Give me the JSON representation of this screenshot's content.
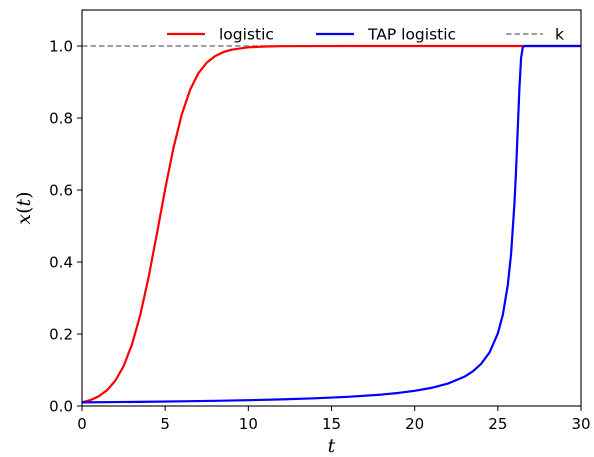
{
  "chart_data": {
    "type": "line",
    "title": "",
    "xlabel": "t",
    "ylabel_parts": {
      "pre": "x",
      "paren_open": "(",
      "var": "t",
      "paren_close": ")"
    },
    "xlim": [
      0,
      30
    ],
    "ylim": [
      0,
      1.1
    ],
    "x_ticks": [
      {
        "value": 0,
        "label": "0"
      },
      {
        "value": 5,
        "label": "5"
      },
      {
        "value": 10,
        "label": "10"
      },
      {
        "value": 15,
        "label": "15"
      },
      {
        "value": 20,
        "label": "20"
      },
      {
        "value": 25,
        "label": "25"
      },
      {
        "value": 30,
        "label": "30"
      }
    ],
    "y_ticks": [
      {
        "value": 0.0,
        "label": "0.0"
      },
      {
        "value": 0.2,
        "label": "0.2"
      },
      {
        "value": 0.4,
        "label": "0.4"
      },
      {
        "value": 0.6,
        "label": "0.6"
      },
      {
        "value": 0.8,
        "label": "0.8"
      },
      {
        "value": 1.0,
        "label": "1.0"
      }
    ],
    "grid": false,
    "legend": {
      "placement": "top",
      "frame": false
    },
    "series": [
      {
        "name": "logistic",
        "color": "#ff0000",
        "style": "solid",
        "x": [
          0,
          0.5,
          1,
          1.5,
          2,
          2.5,
          3,
          3.5,
          4,
          4.5,
          5,
          5.5,
          6,
          6.5,
          7,
          7.5,
          8,
          8.5,
          9,
          10,
          11,
          12,
          14,
          16,
          18,
          20,
          22,
          24,
          26,
          28,
          30
        ],
        "y": [
          0.01,
          0.0164,
          0.0268,
          0.0436,
          0.0701,
          0.1107,
          0.1703,
          0.2523,
          0.3569,
          0.4777,
          0.6025,
          0.7171,
          0.8102,
          0.8785,
          0.9245,
          0.9538,
          0.972,
          0.9831,
          0.9898,
          0.9963,
          0.9986,
          0.9995,
          0.9999,
          1.0,
          1.0,
          1.0,
          1.0,
          1.0,
          1.0,
          1.0,
          1.0
        ]
      },
      {
        "name": "TAP logistic",
        "color": "#0000ff",
        "style": "solid",
        "x": [
          0,
          2,
          4,
          6,
          8,
          10,
          12,
          14,
          16,
          18,
          19,
          20,
          21,
          22,
          23,
          23.5,
          24,
          24.5,
          25,
          25.3,
          25.6,
          25.8,
          26,
          26.1,
          26.2,
          26.3,
          26.4,
          26.5,
          26.6,
          26.7,
          26.8,
          27,
          28,
          30
        ],
        "y": [
          0.0101,
          0.0109,
          0.0118,
          0.013,
          0.0144,
          0.0161,
          0.0183,
          0.0213,
          0.0255,
          0.0317,
          0.0362,
          0.0421,
          0.0503,
          0.0623,
          0.0815,
          0.0963,
          0.1173,
          0.1488,
          0.2015,
          0.2531,
          0.3364,
          0.4241,
          0.5642,
          0.6597,
          0.7722,
          0.8856,
          0.9674,
          0.997,
          1.0,
          1.0,
          1.0,
          1.0,
          1.0,
          1.0
        ]
      },
      {
        "name": "k",
        "color": "#808080",
        "style": "dashed",
        "x": [
          0,
          30
        ],
        "y": [
          1.0,
          1.0
        ]
      }
    ]
  }
}
